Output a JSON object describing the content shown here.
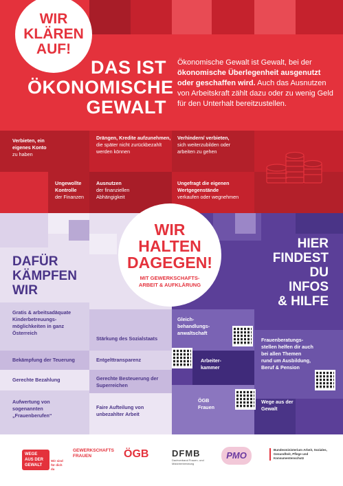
{
  "top": {
    "badge_lines": [
      "WIR",
      "KLÄREN",
      "AUF!"
    ],
    "title_lines": [
      "DAS IST",
      "ÖKONOMISCHE",
      "GEWALT"
    ],
    "intro": {
      "p1": "Ökonomische Gewalt ist Gewalt, bei der ",
      "b1": "ökonomische Überlegenheit ausgenutzt oder geschaffen wird.",
      "p2": " Auch das Ausnutzen von Arbeitskraft zählt dazu oder zu wenig Geld für den Unterhalt bereitzustellen."
    },
    "examples": [
      {
        "bold": "Verbieten, ein eigenes Konto",
        "rest": " zu haben"
      },
      {
        "bold": "Drängen, Kredite aufzunehmen,",
        "rest": " die später nicht zurückbezahlt werden können"
      },
      {
        "bold": "Verhindern/ verbieten,",
        "rest": " sich weiterzubilden oder arbeiten zu gehen"
      },
      {
        "bold": "Ungewollte Kontrolle",
        "rest": " der Finanzen"
      },
      {
        "bold": "Ausnutzen",
        "rest": " der finanziellen Abhängigkeit"
      },
      {
        "bold": "Ungefragt die eigenen Wertgegenstände",
        "rest": " verkaufen oder wegnehmen"
      }
    ],
    "coins_icon": "coin-stack-icon"
  },
  "middle": {
    "badge_lines": [
      "WIR",
      "HALTEN",
      "DAGEGEN!"
    ],
    "badge_sub": "MIT GEWERKSCHAFTS- ARBEIT & AUFKLÄRUNG",
    "left_title_lines": [
      "DAFÜR",
      "KÄMPFEN",
      "WIR"
    ],
    "right_title_lines": [
      "HIER",
      "FINDEST",
      "DU",
      "INFOS",
      "& HILFE"
    ]
  },
  "demands": [
    "Gratis & arbeitsadäquate Kinderbetreuungs-möglichkeiten in ganz Österreich",
    "Stärkung des Sozialstaats",
    "Bekämpfung der Teuerung",
    "Entgelttransparenz",
    "Gerechte Bezahlung",
    "Gerechte Besteuerung der Superreichen",
    "Aufwertung von sogenannten „Frauenberufen“",
    "Faire Aufteilung von unbezahlter Arbeit"
  ],
  "help": [
    "Gleich-behandlungs-anwaltschaft",
    "Arbeiter-kammer",
    "ÖGB Frauen",
    "Frauenberatungs-stellen helfen dir auch bei allen Themen rund um Ausbildung, Beruf & Pension",
    "Wege aus der Gewalt"
  ],
  "footer": {
    "logos": [
      {
        "name": "WEGE AUS DER GEWALT",
        "sub": "Wir sind für dich da"
      },
      {
        "name": "GEWERKSCHAFTS FRAUEN"
      },
      {
        "name": "ÖGB"
      },
      {
        "name": "DFMB",
        "sub": "Dachverband Frauen- und Mädchenberatung"
      },
      {
        "name": "PMO"
      },
      {
        "name": "Bundesministerium Arbeit, Soziales, Gesundheit, Pflege und Konsumentenschutz"
      }
    ]
  },
  "colors": {
    "red": "#e4323c",
    "darkred": "#b3202a",
    "purple": "#4a3487",
    "lavender": "#e8e0f0"
  }
}
